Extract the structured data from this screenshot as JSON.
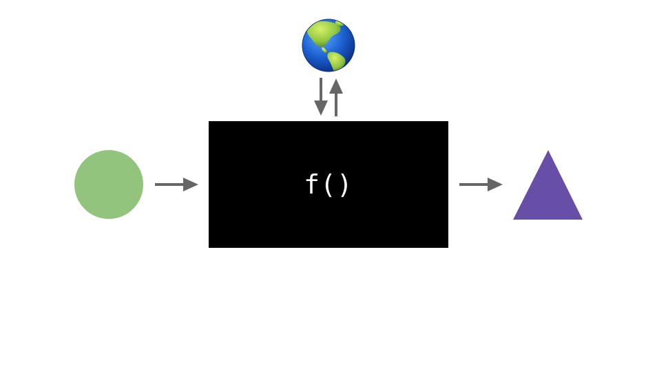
{
  "diagram": {
    "function_label": "f()",
    "input_shape": {
      "icon": "circle-icon",
      "color": "#93c47d"
    },
    "output_shape": {
      "icon": "triangle-icon",
      "color": "#674ea7"
    },
    "external_resource": {
      "icon": "globe-icon",
      "ocean_color": "#1a5fd0",
      "land_color": "#8fc640"
    },
    "box_color": "#000000",
    "arrow_color": "#666666"
  }
}
